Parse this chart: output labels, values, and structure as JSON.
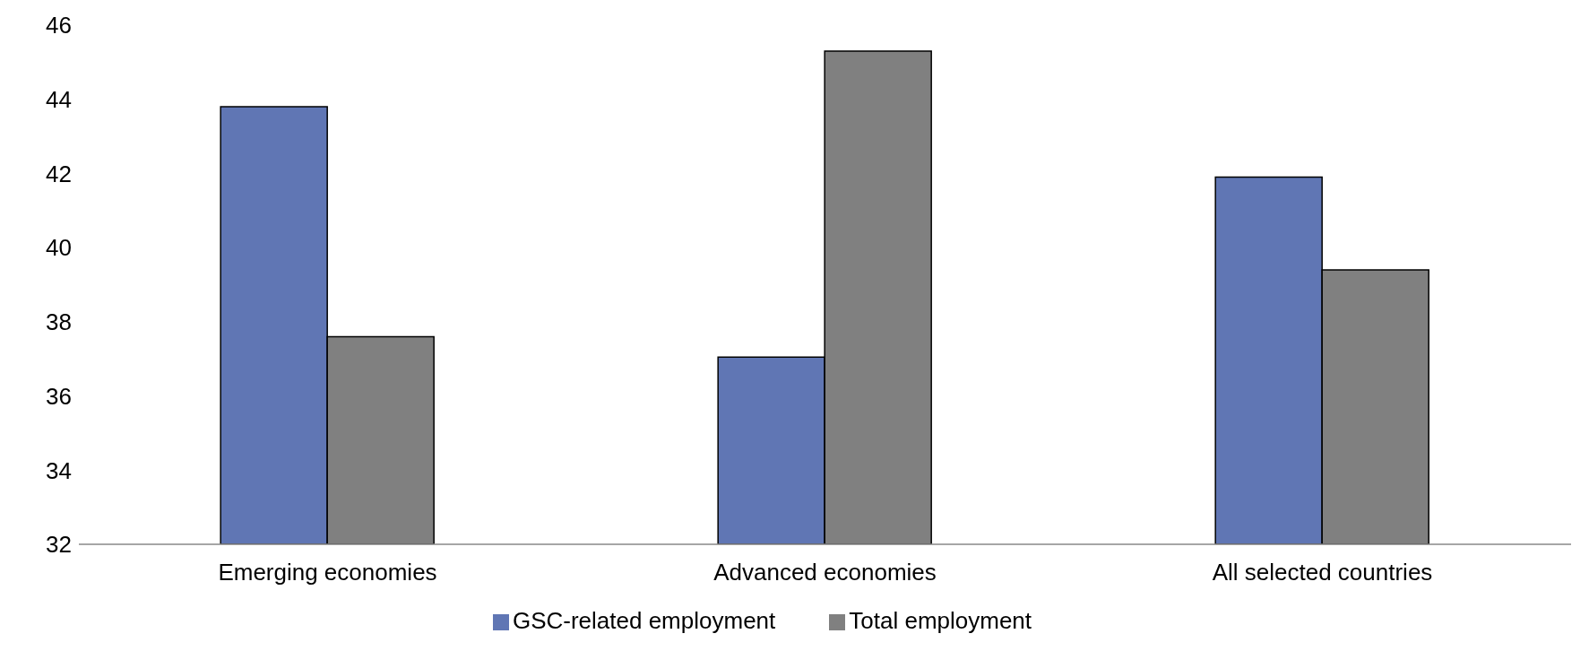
{
  "chart_data": {
    "type": "bar",
    "categories": [
      "Emerging economies",
      "Advanced economies",
      "All selected countries"
    ],
    "series": [
      {
        "name": "GSC-related employment",
        "color": "#6076b4",
        "values": [
          43.8,
          37.05,
          41.9
        ]
      },
      {
        "name": "Total employment",
        "color": "#808080",
        "values": [
          37.6,
          45.3,
          39.4
        ]
      }
    ],
    "ylim": [
      32,
      46
    ],
    "yticks": [
      32,
      34,
      36,
      38,
      40,
      42,
      44,
      46
    ],
    "grid": false,
    "legend": "bottom"
  }
}
